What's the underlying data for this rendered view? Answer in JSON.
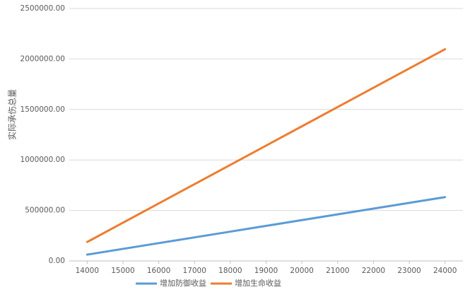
{
  "chart_data": {
    "type": "line",
    "y_label": "实际承伤总量",
    "x": [
      14000,
      15000,
      16000,
      17000,
      18000,
      19000,
      20000,
      21000,
      22000,
      23000,
      24000
    ],
    "series": [
      {
        "name": "增加防御收益",
        "color": "#5b9bd5",
        "values": [
          62500,
          119450,
          176400,
          233350,
          290300,
          347250,
          404200,
          461150,
          518100,
          575050,
          632000
        ]
      },
      {
        "name": "增加生命收益",
        "color": "#ed7d31",
        "values": [
          187500,
          378450,
          569400,
          760350,
          951300,
          1142250,
          1333200,
          1524150,
          1715100,
          1906050,
          2097000
        ]
      }
    ],
    "xlim": [
      13500,
      24500
    ],
    "xticks": [
      14000,
      15000,
      16000,
      17000,
      18000,
      19000,
      20000,
      21000,
      22000,
      23000,
      24000
    ],
    "ylim": [
      0,
      2500000
    ],
    "yticks": [
      {
        "value": 0,
        "label": "0.00"
      },
      {
        "value": 500000,
        "label": "500000.00"
      },
      {
        "value": 1000000,
        "label": "1000000.00"
      },
      {
        "value": 1500000,
        "label": "1500000.00"
      },
      {
        "value": 2000000,
        "label": "2000000.00"
      },
      {
        "value": 2500000,
        "label": "2500000.00"
      }
    ],
    "grid": true,
    "legend": "bottom"
  }
}
